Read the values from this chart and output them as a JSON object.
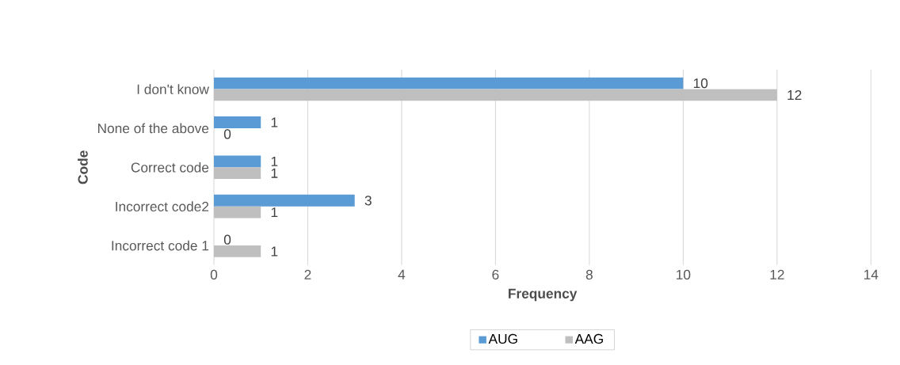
{
  "chart_data": {
    "type": "bar",
    "orientation": "horizontal",
    "xlabel": "Frequency",
    "ylabel": "Code",
    "categories": [
      "I don't know",
      "None of the above",
      "Correct code",
      "Incorrect code2",
      "Incorrect code 1"
    ],
    "series": [
      {
        "name": "AUG",
        "color": "#5b9bd5",
        "values": [
          10,
          1,
          1,
          3,
          0
        ]
      },
      {
        "name": "AAG",
        "color": "#bfbfbf",
        "values": [
          12,
          0,
          1,
          1,
          1
        ]
      }
    ],
    "xlim": [
      0,
      14
    ],
    "xticks": [
      0,
      2,
      4,
      6,
      8,
      10,
      12,
      14
    ],
    "grid": "x",
    "legend": "bottom",
    "data_labels": true
  }
}
